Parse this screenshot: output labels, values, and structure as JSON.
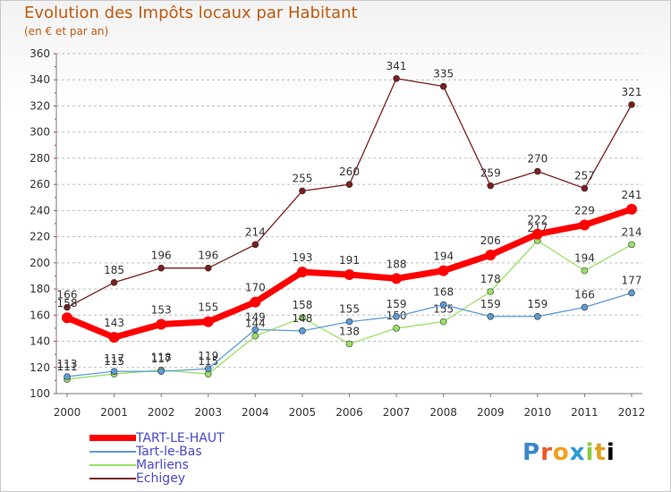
{
  "chart_data": {
    "type": "line",
    "title": "Evolution des Impôts locaux par Habitant",
    "subtitle": "(en € et par an)",
    "xlabel": "",
    "ylabel": "",
    "x": [
      "2000",
      "2001",
      "2002",
      "2003",
      "2004",
      "2005",
      "2006",
      "2007",
      "2008",
      "2009",
      "2010",
      "2011",
      "2012"
    ],
    "ylim": [
      100,
      360
    ],
    "yticks": [
      100,
      120,
      140,
      160,
      180,
      200,
      220,
      240,
      260,
      280,
      300,
      320,
      340,
      360
    ],
    "grid": "horizontal dashed",
    "series": [
      {
        "name": "TART-LE-HAUT",
        "color": "#ff0000",
        "values": [
          158,
          143,
          153,
          155,
          170,
          193,
          191,
          188,
          194,
          206,
          222,
          229,
          241
        ]
      },
      {
        "name": "Tart-le-Bas",
        "color": "#5b9bd5",
        "values": [
          113,
          117,
          117,
          119,
          149,
          148,
          155,
          159,
          168,
          159,
          159,
          166,
          177
        ]
      },
      {
        "name": "Marliens",
        "color": "#99e066",
        "values": [
          111,
          115,
          118,
          115,
          144,
          158,
          138,
          150,
          155,
          178,
          217,
          194,
          214
        ]
      },
      {
        "name": "Echigey",
        "color": "#7a1f1f",
        "values": [
          166,
          185,
          196,
          196,
          214,
          255,
          260,
          341,
          335,
          259,
          270,
          257,
          321
        ]
      }
    ]
  },
  "logo": {
    "letters": [
      "P",
      "r",
      "o",
      "x",
      "i",
      "t",
      "i"
    ]
  }
}
